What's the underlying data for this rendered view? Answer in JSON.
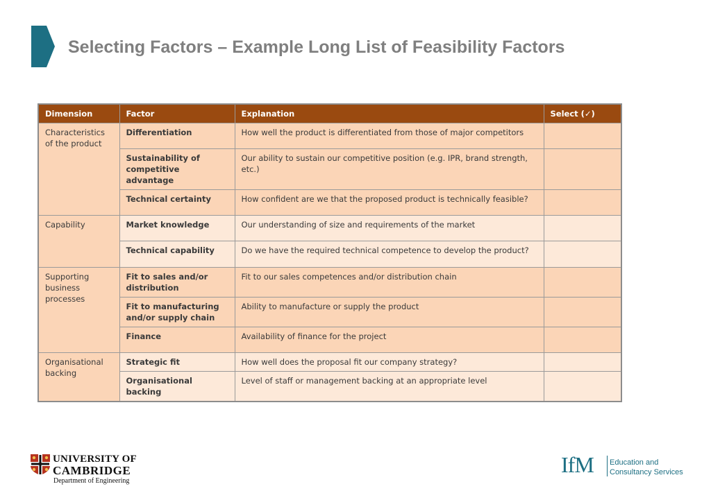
{
  "header": {
    "title": "Selecting Factors – Example Long List of Feasibility Factors",
    "accent_color": "#1d6f83"
  },
  "table": {
    "columns": [
      "Dimension",
      "Factor",
      "Explanation",
      "Select (✓)"
    ],
    "groups": [
      {
        "dimension": "Characteristics of the product",
        "rows": [
          {
            "factor": "Differentiation",
            "explanation": "How well the product is differentiated from those of major competitors"
          },
          {
            "factor": "Sustainability of competitive advantage",
            "explanation": "Our ability to sustain our competitive position (e.g. IPR, brand strength, etc.)"
          },
          {
            "factor": "Technical certainty",
            "explanation": "How confident are we that the proposed product is technically feasible?"
          }
        ]
      },
      {
        "dimension": "Capability",
        "rows": [
          {
            "factor": "Market knowledge",
            "explanation": "Our understanding of size and requirements of the market"
          },
          {
            "factor": "Technical capability",
            "explanation": "Do we have the required technical competence to develop the product?"
          }
        ]
      },
      {
        "dimension": "Supporting business processes",
        "rows": [
          {
            "factor": "Fit to sales and/or distribution",
            "explanation": "Fit to our sales competences and/or distribution chain"
          },
          {
            "factor": "Fit to manufacturing and/or supply chain",
            "explanation": "Ability to manufacture or supply the product"
          },
          {
            "factor": "Finance",
            "explanation": "Availability of finance for the project"
          }
        ]
      },
      {
        "dimension": "Organisational backing",
        "rows": [
          {
            "factor": "Strategic fit",
            "explanation": "How well does the proposal fit our company strategy?"
          },
          {
            "factor": "Organisational backing",
            "explanation": "Level of staff or management backing at an appropriate level"
          }
        ]
      }
    ]
  },
  "footer": {
    "cambridge": {
      "line1": "UNIVERSITY OF",
      "line2": "CAMBRIDGE",
      "line3": "Department of Engineering"
    },
    "ifm": {
      "mark": "IfM",
      "line1": "Education and",
      "line2": "Consultancy Services"
    }
  }
}
